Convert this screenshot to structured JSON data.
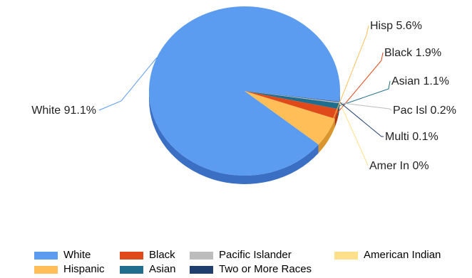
{
  "chart_data": {
    "type": "pie",
    "style": "3d",
    "slices": [
      {
        "name": "White",
        "label": "White 91.1%",
        "value": 91.1,
        "color": "#5b9bf0",
        "side_color": "#3a6fc4"
      },
      {
        "name": "Hispanic",
        "label": "Hisp 5.6%",
        "value": 5.6,
        "color": "#ffbe57",
        "side_color": "#d9962e"
      },
      {
        "name": "Black",
        "label": "Black 1.9%",
        "value": 1.9,
        "color": "#e04a1a",
        "side_color": "#b03510"
      },
      {
        "name": "Asian",
        "label": "Asian 1.1%",
        "value": 1.1,
        "color": "#1f6e8e",
        "side_color": "#145068"
      },
      {
        "name": "Pacific Islander",
        "label": "Pac Isl 0.2%",
        "value": 0.2,
        "color": "#bdbdbd",
        "side_color": "#9a9a9a"
      },
      {
        "name": "Two or More Races",
        "label": "Multi 0.1%",
        "value": 0.1,
        "color": "#1f3e6e",
        "side_color": "#142a4e"
      },
      {
        "name": "American Indian",
        "label": "Amer In 0%",
        "value": 0.0,
        "color": "#ffe08a",
        "side_color": "#e0c060"
      }
    ],
    "legend": {
      "placement": "bottom",
      "items": [
        {
          "label": "White",
          "color": "#5b9bf0"
        },
        {
          "label": "Black",
          "color": "#e04a1a"
        },
        {
          "label": "Pacific Islander",
          "color": "#bdbdbd"
        },
        {
          "label": "American Indian",
          "color": "#ffe08a"
        },
        {
          "label": "Hispanic",
          "color": "#ffbe57"
        },
        {
          "label": "Asian",
          "color": "#1f6e8e"
        },
        {
          "label": "Two or More Races",
          "color": "#1f3e6e"
        }
      ]
    }
  }
}
